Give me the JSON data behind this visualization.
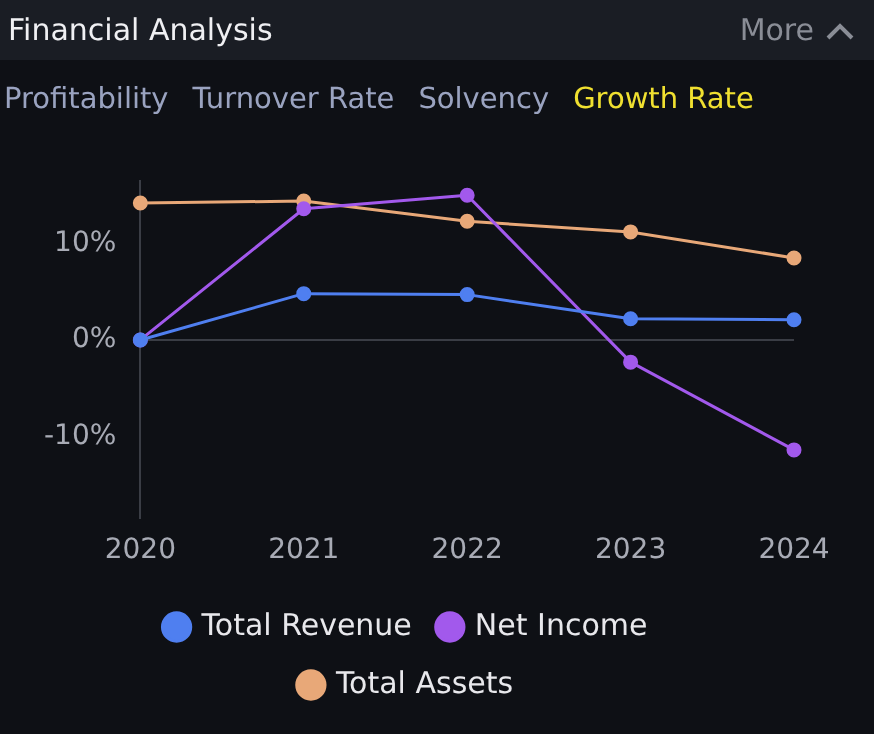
{
  "chart_data": {
    "type": "line",
    "title": "Financial Analysis",
    "annotations": [
      "More",
      "Profitability",
      "Turnover Rate",
      "Solvency",
      "Growth Rate"
    ],
    "categories": [
      "2020",
      "2021",
      "2022",
      "2023",
      "2024"
    ],
    "series": [
      {
        "name": "Total Revenue",
        "color": "#4f7ff0",
        "values": [
          0,
          4.8,
          4.7,
          2.2,
          2.1
        ]
      },
      {
        "name": "Net Income",
        "color": "#a259ec",
        "values": [
          0,
          13.6,
          15.0,
          -2.3,
          -11.4
        ]
      },
      {
        "name": "Total Assets",
        "color": "#e8a878",
        "values": [
          14.2,
          14.4,
          12.3,
          11.2,
          8.5
        ]
      }
    ],
    "ylim": [
      -18.5,
      16.5
    ],
    "yticks": [
      {
        "value": -10,
        "label": "-10%"
      },
      {
        "value": 0,
        "label": "0%"
      },
      {
        "value": 10,
        "label": "10%"
      }
    ],
    "ref_lines": [
      {
        "axis": "y",
        "value": 0,
        "label": null,
        "color": "#3a3d45"
      }
    ],
    "grid": false,
    "legend": "bottom",
    "marker": "circle",
    "line_style": "solid"
  }
}
